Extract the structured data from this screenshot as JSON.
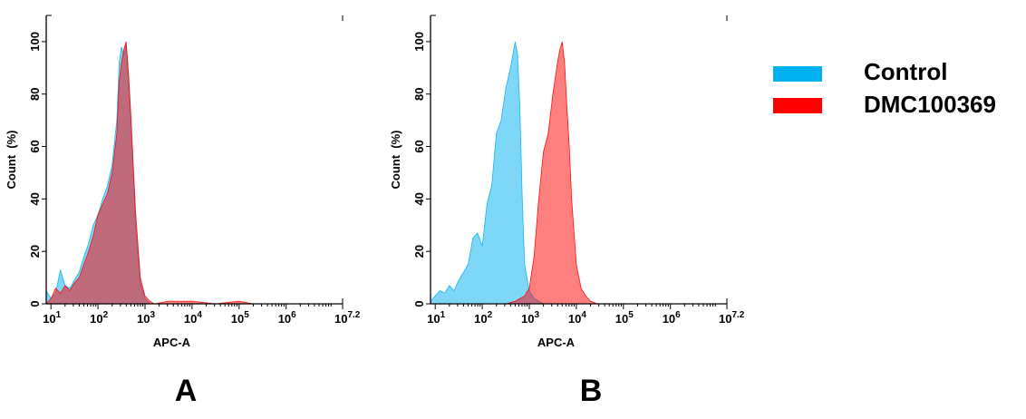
{
  "legend": [
    {
      "label": "Control",
      "color": "#00b0f0"
    },
    {
      "label": "DMC100369",
      "color": "#ff0000"
    }
  ],
  "overlap_color": "#6b7aa0",
  "chart_data": [
    {
      "type": "area",
      "panel_label": "A",
      "xlabel": "APC-A",
      "ylabel": "Count  (%)",
      "x_scale": "log10",
      "xlim_exponent": [
        0.9,
        7.2
      ],
      "ylim": [
        0,
        110
      ],
      "y_ticks": [
        0,
        20,
        40,
        60,
        80,
        100
      ],
      "x_ticks": [
        {
          "base": "10",
          "exp": "1",
          "value": 1
        },
        {
          "base": "10",
          "exp": "2",
          "value": 2
        },
        {
          "base": "10",
          "exp": "3",
          "value": 3
        },
        {
          "base": "10",
          "exp": "4",
          "value": 4
        },
        {
          "base": "10",
          "exp": "5",
          "value": 5
        },
        {
          "base": "10",
          "exp": "6",
          "value": 6
        },
        {
          "base": "10",
          "exp": "7.2",
          "value": 7.2
        }
      ],
      "series": [
        {
          "name": "Control",
          "log_x": [
            0.9,
            1.0,
            1.1,
            1.2,
            1.3,
            1.4,
            1.5,
            1.6,
            1.7,
            1.8,
            1.9,
            2.0,
            2.1,
            2.2,
            2.3,
            2.4,
            2.45,
            2.5,
            2.55,
            2.6,
            2.65,
            2.7,
            2.8,
            2.9,
            3.0,
            3.1,
            3.2
          ],
          "values": [
            5,
            2,
            4,
            13,
            7,
            6,
            9,
            12,
            18,
            23,
            30,
            34,
            40,
            45,
            53,
            70,
            92,
            98,
            95,
            99,
            85,
            70,
            30,
            8,
            2,
            0,
            0
          ]
        },
        {
          "name": "DMC100369",
          "log_x": [
            0.9,
            1.0,
            1.1,
            1.2,
            1.3,
            1.4,
            1.5,
            1.6,
            1.7,
            1.8,
            1.9,
            2.0,
            2.1,
            2.2,
            2.3,
            2.4,
            2.45,
            2.5,
            2.55,
            2.6,
            2.65,
            2.7,
            2.8,
            2.9,
            3.0,
            3.1,
            3.2,
            3.5,
            4.0,
            4.5,
            5.0,
            5.3
          ],
          "values": [
            0,
            2,
            6,
            4,
            7,
            5,
            8,
            10,
            15,
            20,
            26,
            34,
            38,
            42,
            50,
            65,
            85,
            92,
            97,
            100,
            88,
            72,
            35,
            10,
            3,
            1,
            0,
            1,
            1,
            0,
            1,
            0
          ]
        }
      ]
    },
    {
      "type": "area",
      "panel_label": "B",
      "xlabel": "APC-A",
      "ylabel": "Count  (%)",
      "x_scale": "log10",
      "xlim_exponent": [
        0.9,
        7.2
      ],
      "ylim": [
        0,
        110
      ],
      "y_ticks": [
        0,
        20,
        40,
        60,
        80,
        100
      ],
      "x_ticks": [
        {
          "base": "10",
          "exp": "1",
          "value": 1
        },
        {
          "base": "10",
          "exp": "2",
          "value": 2
        },
        {
          "base": "10",
          "exp": "3",
          "value": 3
        },
        {
          "base": "10",
          "exp": "4",
          "value": 4
        },
        {
          "base": "10",
          "exp": "5",
          "value": 5
        },
        {
          "base": "10",
          "exp": "6",
          "value": 6
        },
        {
          "base": "10",
          "exp": "7.2",
          "value": 7.2
        }
      ],
      "series": [
        {
          "name": "Control",
          "log_x": [
            0.9,
            1.0,
            1.1,
            1.2,
            1.3,
            1.4,
            1.5,
            1.6,
            1.7,
            1.8,
            1.9,
            2.0,
            2.1,
            2.2,
            2.3,
            2.4,
            2.5,
            2.6,
            2.7,
            2.75,
            2.8,
            2.85,
            2.9,
            3.0,
            3.1,
            3.2,
            3.3
          ],
          "values": [
            1,
            3,
            5,
            4,
            7,
            5,
            9,
            12,
            15,
            25,
            27,
            22,
            38,
            45,
            65,
            70,
            82,
            90,
            100,
            95,
            75,
            40,
            15,
            5,
            2,
            1,
            0
          ]
        },
        {
          "name": "DMC100369",
          "log_x": [
            2.5,
            2.7,
            2.9,
            3.0,
            3.1,
            3.2,
            3.3,
            3.4,
            3.5,
            3.6,
            3.65,
            3.7,
            3.75,
            3.8,
            3.85,
            3.9,
            4.0,
            4.1,
            4.2,
            4.3,
            4.45
          ],
          "values": [
            0,
            1,
            3,
            6,
            18,
            40,
            58,
            65,
            80,
            92,
            97,
            100,
            92,
            75,
            60,
            40,
            15,
            6,
            3,
            1,
            0
          ]
        }
      ]
    }
  ]
}
